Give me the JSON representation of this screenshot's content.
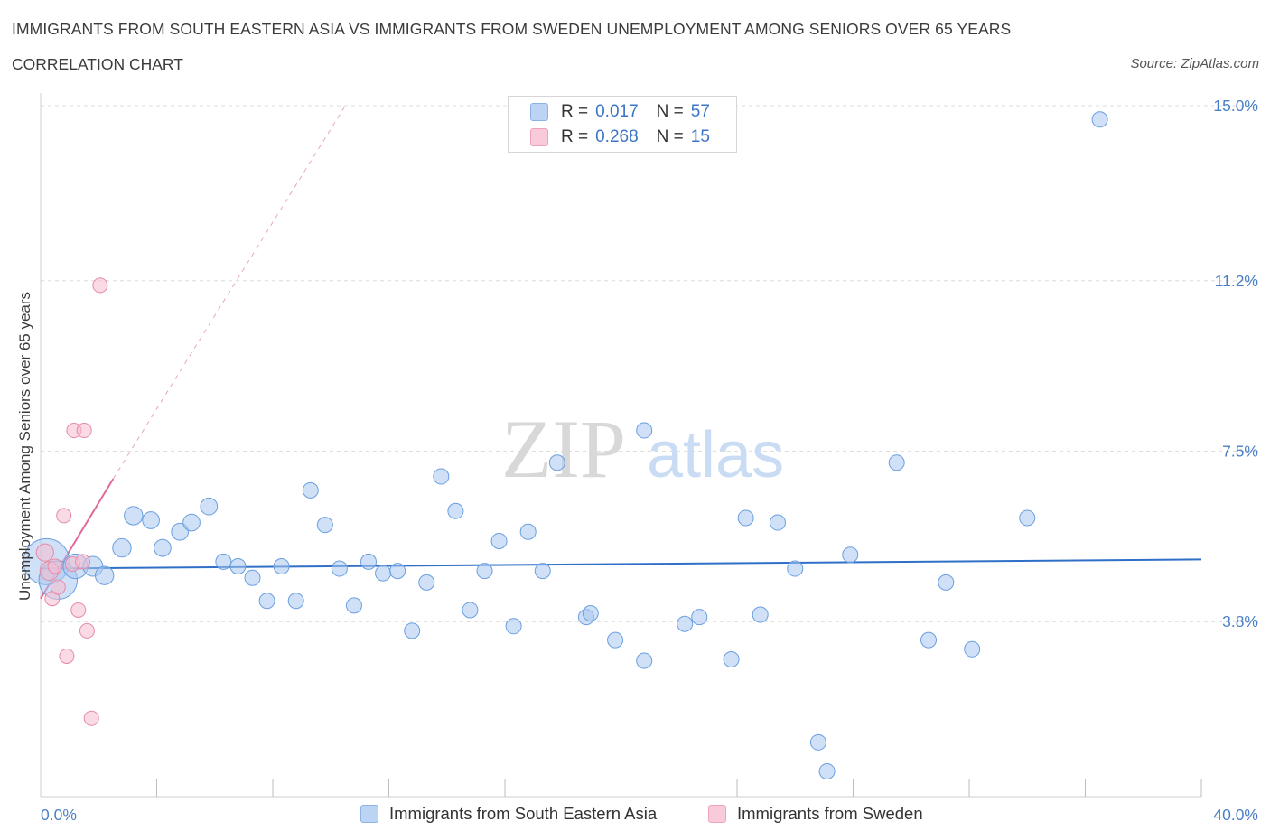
{
  "header": {
    "title": "IMMIGRANTS FROM SOUTH EASTERN ASIA VS IMMIGRANTS FROM SWEDEN UNEMPLOYMENT AMONG SENIORS OVER 65 YEARS",
    "subtitle": "CORRELATION CHART",
    "source": "Source: ZipAtlas.com"
  },
  "colors": {
    "blue_fill": "#a9c8f0",
    "blue_stroke": "#6a9fe0",
    "blue_line": "#2f6fc7",
    "pink_fill": "#f6bcd0",
    "pink_stroke": "#e58aa8",
    "pink_line": "#e0699a",
    "accent_text": "#4a7fc8"
  },
  "legend": {
    "rows": [
      {
        "r_label": "R =",
        "r_value": "0.017",
        "n_label": "N =",
        "n_value": "57"
      },
      {
        "r_label": "R =",
        "r_value": "0.268",
        "n_label": "N =",
        "n_value": "15"
      }
    ]
  },
  "bottom_legend": {
    "series1": "Immigrants from South Eastern Asia",
    "series2": "Immigrants from Sweden"
  },
  "watermark": {
    "part1": "ZIP",
    "part2": "atlas"
  },
  "chart_data": {
    "type": "scatter",
    "title": "IMMIGRANTS FROM SOUTH EASTERN ASIA VS IMMIGRANTS FROM SWEDEN UNEMPLOYMENT AMONG SENIORS OVER 65 YEARS",
    "xlabel": "",
    "ylabel": "Unemployment Among Seniors over 65 years",
    "xlim": [
      0,
      40
    ],
    "ylim": [
      0,
      15
    ],
    "x_tick_labels": [
      "0.0%",
      "40.0%"
    ],
    "y_tick_labels": [
      {
        "value": 3.8,
        "label": "3.8%"
      },
      {
        "value": 7.5,
        "label": "7.5%"
      },
      {
        "value": 11.2,
        "label": "11.2%"
      },
      {
        "value": 15.0,
        "label": "15.0%"
      }
    ],
    "grid": "horizontal dashed",
    "series": [
      {
        "name": "Immigrants from South Eastern Asia",
        "color": "#a9c8f0",
        "trend": {
          "x": [
            0,
            40
          ],
          "y": [
            4.95,
            5.15
          ]
        },
        "points": [
          {
            "x": 0.2,
            "y": 5.1,
            "s": 3
          },
          {
            "x": 0.6,
            "y": 4.7,
            "s": 2.5
          },
          {
            "x": 1.2,
            "y": 5.0,
            "s": 1.6
          },
          {
            "x": 1.8,
            "y": 5.0,
            "s": 1.3
          },
          {
            "x": 2.2,
            "y": 4.8,
            "s": 1.2
          },
          {
            "x": 2.8,
            "y": 5.4,
            "s": 1.2
          },
          {
            "x": 3.2,
            "y": 6.1,
            "s": 1.2
          },
          {
            "x": 3.8,
            "y": 6.0,
            "s": 1.1
          },
          {
            "x": 4.2,
            "y": 5.4,
            "s": 1.1
          },
          {
            "x": 4.8,
            "y": 5.75,
            "s": 1.1
          },
          {
            "x": 5.2,
            "y": 5.95,
            "s": 1.1
          },
          {
            "x": 5.8,
            "y": 6.3,
            "s": 1.1
          },
          {
            "x": 6.3,
            "y": 5.1,
            "s": 1
          },
          {
            "x": 6.8,
            "y": 5.0,
            "s": 1
          },
          {
            "x": 7.3,
            "y": 4.75,
            "s": 1
          },
          {
            "x": 7.8,
            "y": 4.25,
            "s": 1
          },
          {
            "x": 8.3,
            "y": 5.0,
            "s": 1
          },
          {
            "x": 8.8,
            "y": 4.25,
            "s": 1
          },
          {
            "x": 9.3,
            "y": 6.65,
            "s": 1
          },
          {
            "x": 9.8,
            "y": 5.9,
            "s": 1
          },
          {
            "x": 10.3,
            "y": 4.95,
            "s": 1
          },
          {
            "x": 10.8,
            "y": 4.15,
            "s": 1
          },
          {
            "x": 11.3,
            "y": 5.1,
            "s": 1
          },
          {
            "x": 11.8,
            "y": 4.85,
            "s": 1
          },
          {
            "x": 12.3,
            "y": 4.9,
            "s": 1
          },
          {
            "x": 12.8,
            "y": 3.6,
            "s": 1
          },
          {
            "x": 13.3,
            "y": 4.65,
            "s": 1
          },
          {
            "x": 13.8,
            "y": 6.95,
            "s": 1
          },
          {
            "x": 14.3,
            "y": 6.2,
            "s": 1
          },
          {
            "x": 14.8,
            "y": 4.05,
            "s": 1
          },
          {
            "x": 15.3,
            "y": 4.9,
            "s": 1
          },
          {
            "x": 15.8,
            "y": 5.55,
            "s": 1
          },
          {
            "x": 16.3,
            "y": 3.7,
            "s": 1
          },
          {
            "x": 16.8,
            "y": 5.75,
            "s": 1
          },
          {
            "x": 17.3,
            "y": 4.9,
            "s": 1
          },
          {
            "x": 17.8,
            "y": 7.25,
            "s": 1
          },
          {
            "x": 18.8,
            "y": 3.9,
            "s": 1
          },
          {
            "x": 18.95,
            "y": 3.98,
            "s": 1
          },
          {
            "x": 19.8,
            "y": 3.4,
            "s": 1
          },
          {
            "x": 20.8,
            "y": 2.95,
            "s": 1
          },
          {
            "x": 20.8,
            "y": 7.95,
            "s": 1
          },
          {
            "x": 22.2,
            "y": 3.75,
            "s": 1
          },
          {
            "x": 22.7,
            "y": 3.9,
            "s": 1
          },
          {
            "x": 23.8,
            "y": 2.98,
            "s": 1
          },
          {
            "x": 24.3,
            "y": 6.05,
            "s": 1
          },
          {
            "x": 24.8,
            "y": 3.95,
            "s": 1
          },
          {
            "x": 25.4,
            "y": 5.95,
            "s": 1
          },
          {
            "x": 26.0,
            "y": 4.95,
            "s": 1
          },
          {
            "x": 26.8,
            "y": 1.18,
            "s": 1
          },
          {
            "x": 27.1,
            "y": 0.55,
            "s": 1
          },
          {
            "x": 27.9,
            "y": 5.25,
            "s": 1
          },
          {
            "x": 29.5,
            "y": 7.25,
            "s": 1
          },
          {
            "x": 30.6,
            "y": 3.4,
            "s": 1
          },
          {
            "x": 31.2,
            "y": 4.65,
            "s": 1
          },
          {
            "x": 32.1,
            "y": 3.2,
            "s": 1
          },
          {
            "x": 34.0,
            "y": 6.05,
            "s": 1
          },
          {
            "x": 36.5,
            "y": 14.7,
            "s": 1
          }
        ]
      },
      {
        "name": "Immigrants from Sweden",
        "color": "#f6bcd0",
        "trend": {
          "x": [
            0,
            2.5
          ],
          "y": [
            4.3,
            6.9
          ],
          "extended": {
            "x": [
              2.5,
              10.5
            ],
            "y": [
              6.9,
              15.0
            ]
          }
        },
        "points": [
          {
            "x": 0.15,
            "y": 5.3,
            "s": 1.2
          },
          {
            "x": 0.3,
            "y": 4.9,
            "s": 1.3
          },
          {
            "x": 0.4,
            "y": 4.3,
            "s": 1
          },
          {
            "x": 0.5,
            "y": 5.0,
            "s": 1
          },
          {
            "x": 0.6,
            "y": 4.55,
            "s": 1
          },
          {
            "x": 0.8,
            "y": 6.1,
            "s": 1
          },
          {
            "x": 0.9,
            "y": 3.05,
            "s": 1
          },
          {
            "x": 1.1,
            "y": 5.05,
            "s": 1
          },
          {
            "x": 1.15,
            "y": 7.95,
            "s": 1
          },
          {
            "x": 1.3,
            "y": 4.05,
            "s": 1
          },
          {
            "x": 1.45,
            "y": 5.1,
            "s": 1
          },
          {
            "x": 1.5,
            "y": 7.95,
            "s": 1
          },
          {
            "x": 1.6,
            "y": 3.6,
            "s": 1
          },
          {
            "x": 1.75,
            "y": 1.7,
            "s": 1
          },
          {
            "x": 2.05,
            "y": 11.1,
            "s": 1
          }
        ]
      }
    ]
  }
}
